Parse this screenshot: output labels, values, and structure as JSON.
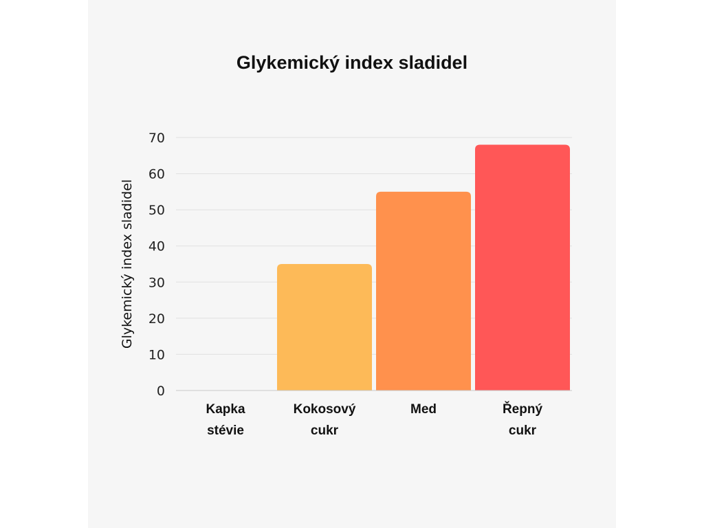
{
  "chart_data": {
    "type": "bar",
    "title": "Glykemický index sladidel",
    "ylabel": "Glykemický index sladidel",
    "xlabel": "",
    "categories": [
      [
        "Kapka",
        "stévie"
      ],
      [
        "Kokosový",
        "cukr"
      ],
      [
        "Med"
      ],
      [
        "Řepný",
        "cukr"
      ]
    ],
    "values": [
      0,
      35,
      55,
      68
    ],
    "ylim": [
      0,
      70
    ],
    "yticks": [
      "0",
      "10",
      "20",
      "30",
      "40",
      "50",
      "60",
      "70"
    ],
    "bar_colors": [
      "#FDBA58",
      "#FDBA58",
      "#FF914D",
      "#FF5757"
    ],
    "grid": true,
    "legend": "none"
  }
}
